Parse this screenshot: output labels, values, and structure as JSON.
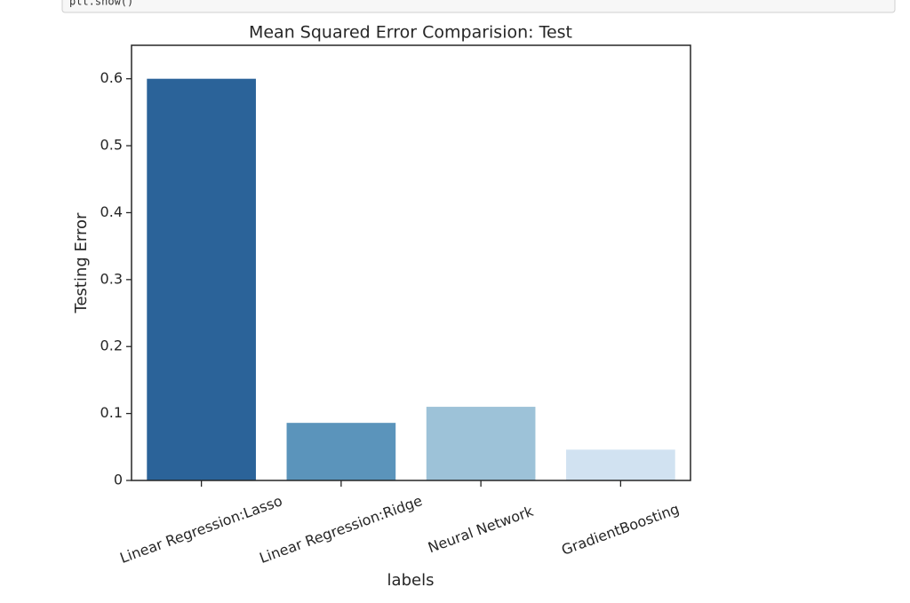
{
  "code": "plt.show()",
  "chart_data": {
    "type": "bar",
    "title": "Mean Squared Error Comparision: Test",
    "x_label": "labels",
    "y_label": "Testing Error",
    "categories": [
      "Linear Regression:Lasso",
      "Linear Regression:Ridge",
      "Neural Network",
      "GradientBoosting"
    ],
    "values": [
      0.6,
      0.086,
      0.11,
      0.046
    ],
    "colors": [
      "#2b6399",
      "#5b94bb",
      "#9dc2d8",
      "#d1e2f1"
    ],
    "ylim": [
      0,
      0.65
    ],
    "yticks": [
      0.0,
      0.1,
      0.2,
      0.3,
      0.4,
      0.5,
      0.6
    ],
    "grid": false
  }
}
